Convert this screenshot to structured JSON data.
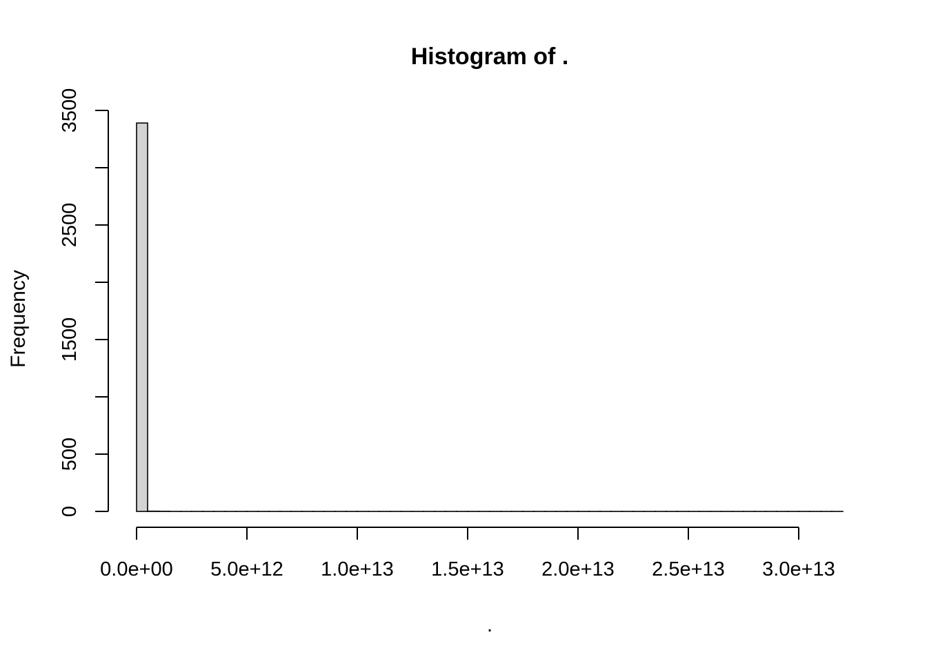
{
  "chart_data": {
    "type": "histogram",
    "title": "Histogram of .",
    "xlabel": ".",
    "ylabel": "Frequency",
    "x_ticks": [
      0,
      5000000000000.0,
      10000000000000.0,
      15000000000000.0,
      20000000000000.0,
      25000000000000.0,
      30000000000000.0
    ],
    "x_tick_labels": [
      "0.0e+00",
      "5.0e+12",
      "1.0e+13",
      "1.5e+13",
      "2.0e+13",
      "2.5e+13",
      "3.0e+13"
    ],
    "y_ticks": [
      0,
      500,
      1000,
      1500,
      2000,
      2500,
      3000,
      3500
    ],
    "y_tick_labels": [
      "0",
      "500",
      "",
      "1500",
      "",
      "2500",
      "",
      "3500"
    ],
    "xlim": [
      0,
      32000000000000.0
    ],
    "ylim": [
      0,
      3500
    ],
    "bin_width": 500000000000.0,
    "bins": [
      {
        "x0": 0,
        "x1": 500000000000.0,
        "count": 3390
      },
      {
        "x0": 500000000000.0,
        "x1": 1000000000000.0,
        "count": 2
      },
      {
        "x0": 1000000000000.0,
        "x1": 1500000000000.0,
        "count": 1
      }
    ],
    "bar_fill": "#d3d3d3",
    "bar_stroke": "#000000",
    "grid": false,
    "legend": "none"
  }
}
